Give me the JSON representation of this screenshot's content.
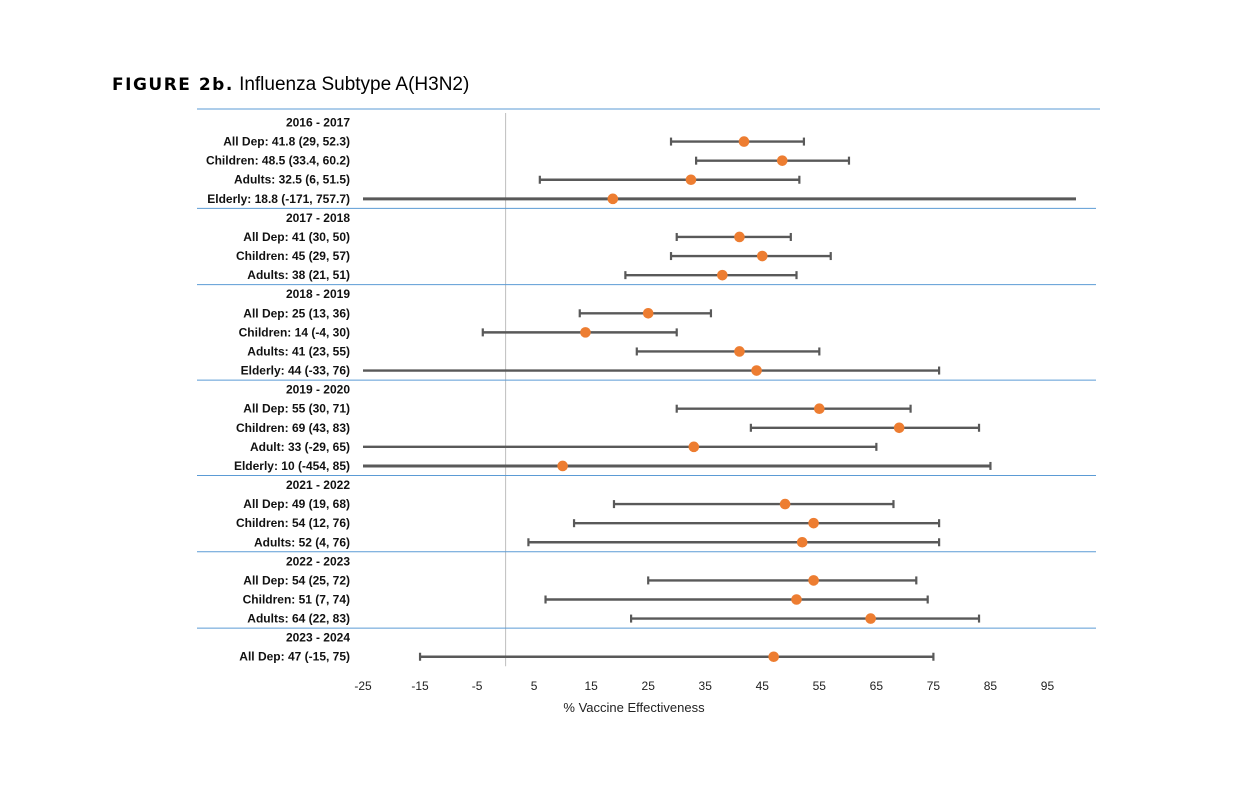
{
  "figure": {
    "label": "FIGURE 2b.",
    "title": "Influenza Subtype A(H3N2)"
  },
  "chart_data": {
    "type": "forest",
    "xlabel": "% Vaccine Effectiveness",
    "xlim": [
      -25,
      100
    ],
    "xticks": [
      -25,
      -15,
      -5,
      5,
      15,
      25,
      35,
      45,
      55,
      65,
      75,
      85,
      95
    ],
    "reference_line": 0,
    "colors": {
      "point": "#ed7d31",
      "ci": "#595959",
      "separator": "#5b9bd5",
      "reference": "#bfbfbf"
    },
    "groups": [
      {
        "season": "2016 - 2017",
        "rows": [
          {
            "label": "All Dep: 41.8 (29, 52.3)",
            "ve": 41.8,
            "lower": 29,
            "upper": 52.3
          },
          {
            "label": "Children: 48.5 (33.4, 60.2)",
            "ve": 48.5,
            "lower": 33.4,
            "upper": 60.2
          },
          {
            "label": "Adults: 32.5 (6, 51.5)",
            "ve": 32.5,
            "lower": 6,
            "upper": 51.5
          },
          {
            "label": "Elderly: 18.8 (-171, 757.7)",
            "ve": 18.8,
            "lower": -171,
            "upper": 757.7
          }
        ]
      },
      {
        "season": "2017 - 2018",
        "rows": [
          {
            "label": "All Dep: 41 (30, 50)",
            "ve": 41,
            "lower": 30,
            "upper": 50
          },
          {
            "label": "Children: 45 (29, 57)",
            "ve": 45,
            "lower": 29,
            "upper": 57
          },
          {
            "label": "Adults: 38 (21, 51)",
            "ve": 38,
            "lower": 21,
            "upper": 51
          }
        ]
      },
      {
        "season": "2018 - 2019",
        "rows": [
          {
            "label": "All Dep: 25 (13, 36)",
            "ve": 25,
            "lower": 13,
            "upper": 36
          },
          {
            "label": "Children: 14 (-4, 30)",
            "ve": 14,
            "lower": -4,
            "upper": 30
          },
          {
            "label": "Adults: 41 (23, 55)",
            "ve": 41,
            "lower": 23,
            "upper": 55
          },
          {
            "label": "Elderly: 44 (-33, 76)",
            "ve": 44,
            "lower": -33,
            "upper": 76
          }
        ]
      },
      {
        "season": "2019 - 2020",
        "rows": [
          {
            "label": "All Dep: 55 (30, 71)",
            "ve": 55,
            "lower": 30,
            "upper": 71
          },
          {
            "label": "Children: 69 (43, 83)",
            "ve": 69,
            "lower": 43,
            "upper": 83
          },
          {
            "label": "Adult: 33 (-29, 65)",
            "ve": 33,
            "lower": -29,
            "upper": 65
          },
          {
            "label": "Elderly: 10 (-454, 85)",
            "ve": 10,
            "lower": -454,
            "upper": 85
          }
        ]
      },
      {
        "season": "2021 - 2022",
        "rows": [
          {
            "label": "All Dep: 49 (19, 68)",
            "ve": 49,
            "lower": 19,
            "upper": 68
          },
          {
            "label": "Children: 54 (12, 76)",
            "ve": 54,
            "lower": 12,
            "upper": 76
          },
          {
            "label": "Adults: 52 (4, 76)",
            "ve": 52,
            "lower": 4,
            "upper": 76
          }
        ]
      },
      {
        "season": "2022 - 2023",
        "rows": [
          {
            "label": "All Dep: 54 (25, 72)",
            "ve": 54,
            "lower": 25,
            "upper": 72
          },
          {
            "label": "Children: 51 (7, 74)",
            "ve": 51,
            "lower": 7,
            "upper": 74
          },
          {
            "label": "Adults: 64 (22, 83)",
            "ve": 64,
            "lower": 22,
            "upper": 83
          }
        ]
      },
      {
        "season": "2023 - 2024",
        "rows": [
          {
            "label": "All Dep: 47 (-15, 75)",
            "ve": 47,
            "lower": -15,
            "upper": 75
          }
        ]
      }
    ]
  }
}
